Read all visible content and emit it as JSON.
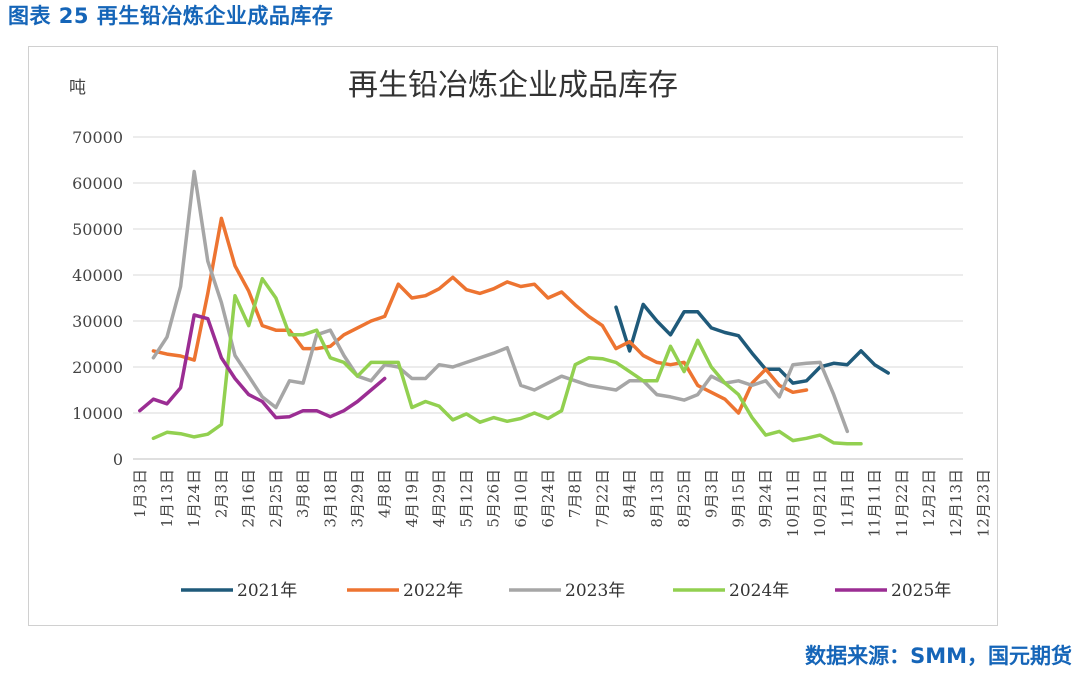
{
  "caption": "图表 25 再生铅冶炼企业成品库存",
  "source": "数据来源：SMM，国元期货",
  "chart_data": {
    "type": "line",
    "title": "再生铅冶炼企业成品库存",
    "ylabel": "吨",
    "xlabel": "",
    "ylim": [
      0,
      70000
    ],
    "yticks": [
      0,
      10000,
      20000,
      30000,
      40000,
      50000,
      60000,
      70000
    ],
    "grid": true,
    "legend_position": "bottom",
    "x_count": 61,
    "tick_labels": [
      "1月3日",
      "1月13日",
      "1月24日",
      "2月3日",
      "2月16日",
      "2月25日",
      "3月8日",
      "3月18日",
      "3月29日",
      "4月8日",
      "4月19日",
      "4月29日",
      "5月12日",
      "5月26日",
      "6月10日",
      "6月24日",
      "7月8日",
      "7月22日",
      "8月4日",
      "8月13日",
      "8月25日",
      "9月3日",
      "9月15日",
      "9月24日",
      "10月11日",
      "10月21日",
      "11月1日",
      "11月11日",
      "11月22日",
      "12月2日",
      "12月13日",
      "12月23日"
    ],
    "series": [
      {
        "name": "2021年",
        "color": "#1f5a7a",
        "x_start": 35,
        "values": [
          33000,
          23500,
          33600,
          30000,
          27000,
          32000,
          32000,
          28500,
          27500,
          26800,
          23000,
          19500,
          19500,
          16500,
          17000,
          20000,
          20800,
          20500,
          23500,
          20500,
          18700
        ]
      },
      {
        "name": "2022年",
        "color": "#ed7431",
        "x_start": 1,
        "values": [
          23500,
          22800,
          22400,
          21500,
          36000,
          52300,
          42000,
          36500,
          29000,
          28000,
          28000,
          24000,
          24000,
          24500,
          27000,
          28500,
          30000,
          31000,
          38000,
          35000,
          35500,
          37000,
          39500,
          36800,
          36000,
          37000,
          38500,
          37500,
          38000,
          35000,
          36300,
          33500,
          31000,
          29000,
          24000,
          25500,
          22500,
          21000,
          20500,
          21000,
          16000,
          14500,
          13000,
          10000,
          16500,
          19500,
          16000,
          14500,
          15000
        ]
      },
      {
        "name": "2023年",
        "color": "#a6a6a6",
        "x_start": 1,
        "values": [
          22000,
          26500,
          37500,
          62500,
          43000,
          34000,
          22500,
          18000,
          13500,
          11200,
          17000,
          16500,
          27000,
          28000,
          22500,
          18000,
          17000,
          20500,
          20000,
          17500,
          17500,
          20500,
          20000,
          21000,
          22000,
          23000,
          24200,
          16000,
          15000,
          16500,
          18000,
          17000,
          16000,
          15500,
          15000,
          17000,
          17000,
          14000,
          13500,
          12800,
          14000,
          18000,
          16500,
          17000,
          16000,
          17000,
          13500,
          20500,
          20800,
          21000,
          14000,
          6000
        ]
      },
      {
        "name": "2024年",
        "color": "#92d050",
        "x_start": 1,
        "values": [
          4500,
          5800,
          5500,
          4800,
          5400,
          7500,
          35500,
          29000,
          39200,
          35000,
          27000,
          27000,
          28000,
          22000,
          21000,
          18000,
          21000,
          21000,
          21000,
          11200,
          12500,
          11500,
          8500,
          9800,
          8000,
          9000,
          8200,
          8800,
          10000,
          8800,
          10500,
          20500,
          22000,
          21800,
          21000,
          19000,
          17000,
          17000,
          24500,
          19000,
          25800,
          20000,
          16500,
          14000,
          9000,
          5200,
          6000,
          4000,
          4500,
          5200,
          3500,
          3300,
          3300
        ]
      },
      {
        "name": "2025年",
        "color": "#9b2d93",
        "x_start": 0,
        "values": [
          10500,
          13000,
          12000,
          15500,
          31300,
          30500,
          22000,
          17500,
          14000,
          12500,
          9000,
          9200,
          10500,
          10500,
          9200,
          10500,
          12500,
          15000,
          17500
        ]
      }
    ]
  }
}
